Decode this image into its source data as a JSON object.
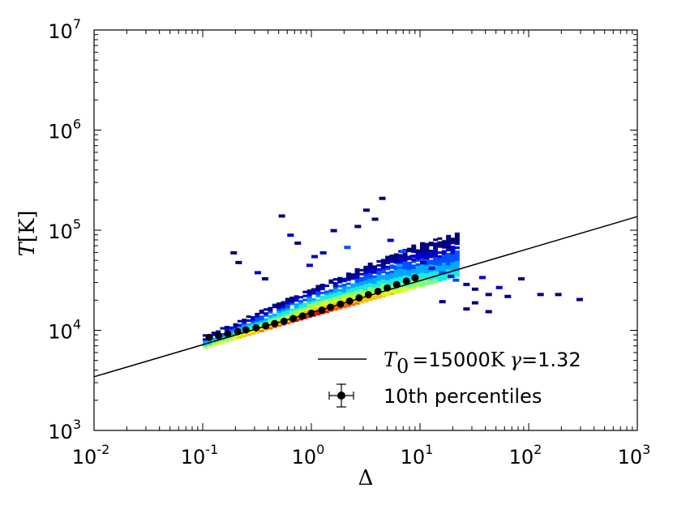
{
  "chart_data": {
    "type": "scatter",
    "title": "",
    "xlabel": "Δ",
    "ylabel_italic": "T",
    "ylabel_unit": "[K]",
    "xscale": "log",
    "yscale": "log",
    "xlim": [
      0.01,
      1000
    ],
    "ylim": [
      1000,
      10000000
    ],
    "x_ticks": [
      {
        "base": "10",
        "exp": "-2",
        "value": 0.01
      },
      {
        "base": "10",
        "exp": "-1",
        "value": 0.1
      },
      {
        "base": "10",
        "exp": "0",
        "value": 1
      },
      {
        "base": "10",
        "exp": "1",
        "value": 10
      },
      {
        "base": "10",
        "exp": "2",
        "value": 100
      },
      {
        "base": "10",
        "exp": "3",
        "value": 1000
      }
    ],
    "y_ticks": [
      {
        "base": "10",
        "exp": "3",
        "value": 1000
      },
      {
        "base": "10",
        "exp": "4",
        "value": 10000
      },
      {
        "base": "10",
        "exp": "5",
        "value": 100000
      },
      {
        "base": "10",
        "exp": "6",
        "value": 1000000
      },
      {
        "base": "10",
        "exp": "7",
        "value": 10000000
      }
    ],
    "fit_line": {
      "T0": 15000,
      "gamma": 1.32,
      "legend_T0_symbol": "T",
      "legend_T0_sub": "0",
      "legend_eq": "=15000",
      "legend_K": "K",
      "legend_gamma_symbol": "γ",
      "legend_gamma_value": "=1.32",
      "color": "#000000"
    },
    "percentiles": {
      "legend_label": "10th percentiles",
      "color": "#000000",
      "x": [
        0.115,
        0.14,
        0.17,
        0.21,
        0.25,
        0.31,
        0.38,
        0.46,
        0.56,
        0.68,
        0.83,
        1.0,
        1.25,
        1.5,
        1.85,
        2.25,
        2.75,
        3.35,
        4.1,
        5.0,
        6.1,
        7.5,
        9.0
      ],
      "y": [
        8500,
        8800,
        9200,
        9700,
        10100,
        10600,
        11100,
        11700,
        12300,
        13100,
        13900,
        14800,
        15900,
        17000,
        18300,
        19600,
        21100,
        22700,
        24500,
        26500,
        28600,
        31000,
        33500
      ]
    },
    "histogram": {
      "description_colormap": "jet",
      "colors": {
        "c0": "#000080",
        "c1": "#0000cd",
        "c2": "#0050ff",
        "c3": "#00a8ff",
        "c4": "#20e8e0",
        "c5": "#7cff7c",
        "c6": "#d8ff20",
        "c7": "#ffc000",
        "c8": "#ff6000",
        "c9": "#e01000"
      }
    },
    "legend": {
      "location": "lower right",
      "entries": [
        "fit_line",
        "percentiles"
      ]
    }
  }
}
